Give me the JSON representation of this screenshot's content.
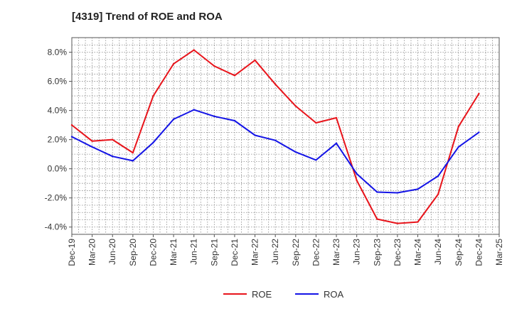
{
  "chart_data": {
    "type": "line",
    "title": "[4319]  Trend of ROE and ROA",
    "xlabel": "",
    "ylabel": "",
    "categories": [
      "Dec-19",
      "Mar-20",
      "Jun-20",
      "Sep-20",
      "Dec-20",
      "Mar-21",
      "Jun-21",
      "Sep-21",
      "Dec-21",
      "Mar-22",
      "Jun-22",
      "Sep-22",
      "Dec-22",
      "Mar-23",
      "Jun-23",
      "Sep-23",
      "Dec-23",
      "Mar-24",
      "Jun-24",
      "Sep-24",
      "Dec-24",
      "Mar-25"
    ],
    "yticks": [
      "8.0%",
      "6.0%",
      "4.0%",
      "2.0%",
      "0.0%",
      "-2.0%",
      "-4.0%"
    ],
    "ytick_values": [
      8,
      6,
      4,
      2,
      0,
      -2,
      -4
    ],
    "ylim": [
      -4.5,
      9.0
    ],
    "grid": true,
    "legend_position": "bottom",
    "series": [
      {
        "name": "ROE",
        "color": "#e8141b",
        "values": [
          3.0,
          1.9,
          2.0,
          1.1,
          5.0,
          7.2,
          8.15,
          7.05,
          6.4,
          7.45,
          5.8,
          4.3,
          3.15,
          3.5,
          -0.8,
          -3.45,
          -3.75,
          -3.65,
          -1.75,
          2.9,
          5.15,
          null
        ]
      },
      {
        "name": "ROA",
        "color": "#1414e6",
        "values": [
          2.2,
          1.5,
          0.85,
          0.55,
          1.8,
          3.4,
          4.05,
          3.6,
          3.3,
          2.3,
          1.95,
          1.15,
          0.6,
          1.75,
          -0.35,
          -1.6,
          -1.65,
          -1.4,
          -0.5,
          1.5,
          2.5,
          null
        ]
      }
    ]
  }
}
